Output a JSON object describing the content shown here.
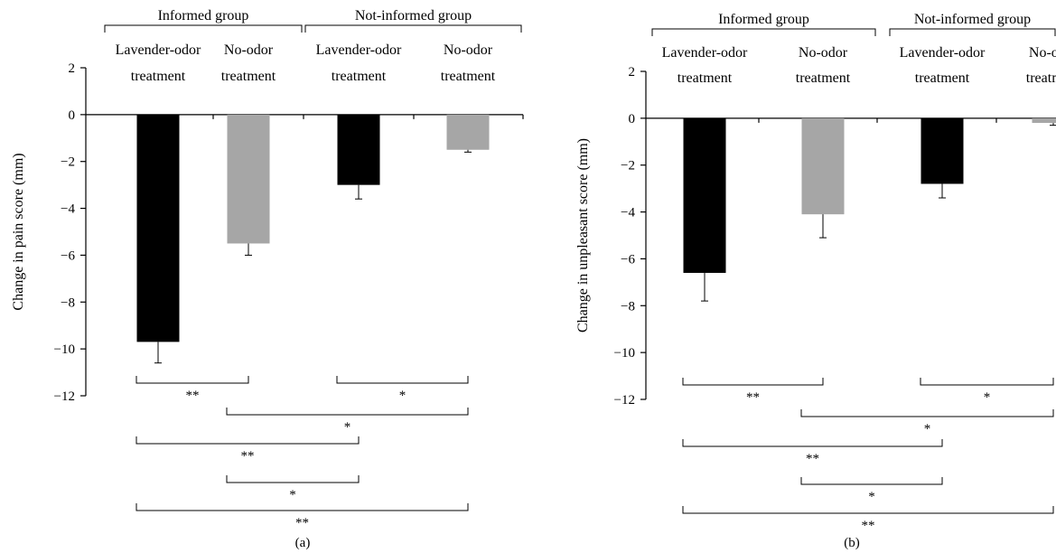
{
  "chart_data": [
    {
      "panel_label": "(a)",
      "type": "bar",
      "ylabel": "Change in pain score (mm)",
      "ylim": [
        -12,
        2
      ],
      "yticks": [
        2,
        0,
        -2,
        -4,
        -6,
        -8,
        -10,
        -12
      ],
      "ytick_labels": [
        "2",
        "0",
        "−2",
        "−4",
        "−6",
        "−8",
        "−10",
        "−12"
      ],
      "groups": [
        {
          "label": "Informed group",
          "start": 0,
          "end": 1
        },
        {
          "label": "Not-informed group",
          "start": 2,
          "end": 3
        }
      ],
      "categories": [
        [
          "Lavender-odor",
          "treatment"
        ],
        [
          "No-odor",
          "treatment"
        ],
        [
          "Lavender-odor",
          "treatment"
        ],
        [
          "No-odor",
          "treatment"
        ]
      ],
      "values": [
        -9.7,
        -5.5,
        -3.0,
        -1.5
      ],
      "errors": [
        0.9,
        0.5,
        0.6,
        0.1
      ],
      "colors": [
        "#000000",
        "#a6a6a6",
        "#000000",
        "#a6a6a6"
      ],
      "significance": [
        {
          "from": 0,
          "to": 1,
          "label": "**"
        },
        {
          "from": 2,
          "to": 3,
          "label": "*"
        },
        {
          "from": 1,
          "to": 3,
          "label": "*"
        },
        {
          "from": 0,
          "to": 2,
          "label": "**"
        },
        {
          "from": 1,
          "to": 2,
          "label": "*"
        },
        {
          "from": 0,
          "to": 3,
          "label": "**"
        }
      ]
    },
    {
      "panel_label": "(b)",
      "type": "bar",
      "ylabel": "Change in unpleasant score (mm)",
      "ylim": [
        -12,
        2
      ],
      "yticks": [
        2,
        0,
        -2,
        -4,
        -6,
        -8,
        -10,
        -12
      ],
      "ytick_labels": [
        "2",
        "0",
        "−2",
        "−4",
        "−6",
        "−8",
        "−10",
        "−12"
      ],
      "groups": [
        {
          "label": "Informed group",
          "start": 0,
          "end": 1
        },
        {
          "label": "Not-informed group",
          "start": 2,
          "end": 3
        }
      ],
      "categories": [
        [
          "Lavender-odor",
          "treatment"
        ],
        [
          "No-odor",
          "treatment"
        ],
        [
          "Lavender-odor",
          "treatment"
        ],
        [
          "No-odor",
          "treatment"
        ]
      ],
      "values": [
        -6.6,
        -4.1,
        -2.8,
        -0.2
      ],
      "errors": [
        1.2,
        1.0,
        0.6,
        0.1
      ],
      "colors": [
        "#000000",
        "#a6a6a6",
        "#000000",
        "#a6a6a6"
      ],
      "significance": [
        {
          "from": 0,
          "to": 1,
          "label": "**"
        },
        {
          "from": 2,
          "to": 3,
          "label": "*"
        },
        {
          "from": 1,
          "to": 3,
          "label": "*"
        },
        {
          "from": 0,
          "to": 2,
          "label": "**"
        },
        {
          "from": 1,
          "to": 2,
          "label": "*"
        },
        {
          "from": 0,
          "to": 3,
          "label": "**"
        }
      ]
    }
  ]
}
